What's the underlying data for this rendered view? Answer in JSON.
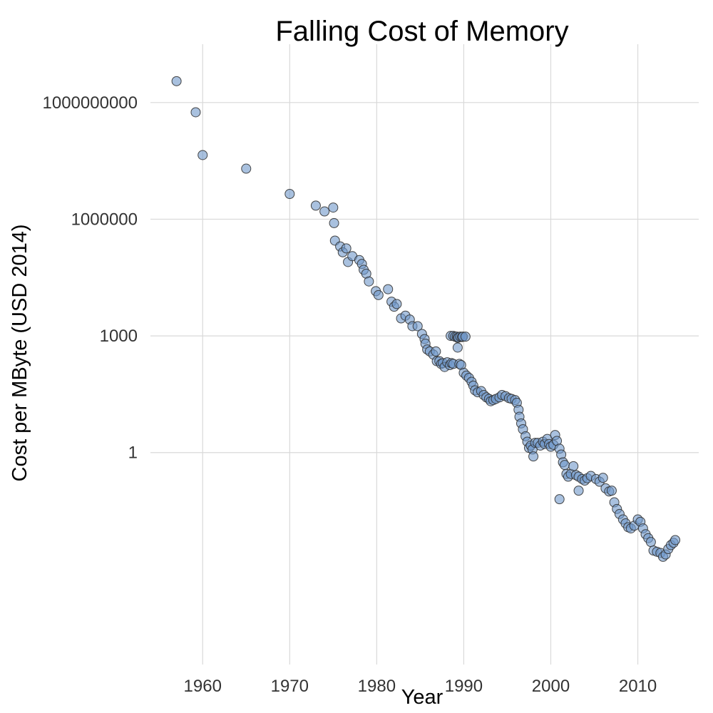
{
  "chart_data": {
    "type": "scatter",
    "title": "Falling Cost of Memory",
    "xlabel": "Year",
    "ylabel": "Cost per MByte (USD 2014)",
    "y_scale": "log10",
    "xlim": [
      1954,
      2017
    ],
    "ylim_log10": [
      -5.45,
      10.5
    ],
    "xticks": [
      1960,
      1970,
      1980,
      1990,
      2000,
      2010
    ],
    "xtick_labels": [
      "1960",
      "1970",
      "1980",
      "1990",
      "2000",
      "2010"
    ],
    "yticks_log10": [
      0,
      3,
      6,
      9
    ],
    "ytick_labels": [
      "1",
      "1000",
      "1000000",
      "1000000000"
    ],
    "grid": true,
    "marker_color": "#6f97c9",
    "points": [
      [
        1957,
        9.55
      ],
      [
        1959.2,
        8.75
      ],
      [
        1960,
        7.65
      ],
      [
        1965,
        7.3
      ],
      [
        1970,
        6.65
      ],
      [
        1973,
        6.35
      ],
      [
        1974,
        6.2
      ],
      [
        1975,
        6.3
      ],
      [
        1975.1,
        5.9
      ],
      [
        1975.2,
        5.45
      ],
      [
        1975.8,
        5.3
      ],
      [
        1976.1,
        5.15
      ],
      [
        1976.5,
        5.25
      ],
      [
        1976.7,
        4.9
      ],
      [
        1977.2,
        5.05
      ],
      [
        1978,
        4.95
      ],
      [
        1978.3,
        4.85
      ],
      [
        1978.5,
        4.7
      ],
      [
        1978.8,
        4.6
      ],
      [
        1979.1,
        4.4
      ],
      [
        1979.9,
        4.15
      ],
      [
        1980.2,
        4.05
      ],
      [
        1981.3,
        4.2
      ],
      [
        1981.7,
        3.88
      ],
      [
        1982,
        3.75
      ],
      [
        1982.3,
        3.82
      ],
      [
        1982.8,
        3.45
      ],
      [
        1983.3,
        3.52
      ],
      [
        1983.8,
        3.42
      ],
      [
        1984.1,
        3.25
      ],
      [
        1984.7,
        3.25
      ],
      [
        1985.2,
        3.05
      ],
      [
        1985.5,
        2.92
      ],
      [
        1985.6,
        2.8
      ],
      [
        1985.8,
        2.65
      ],
      [
        1986.1,
        2.6
      ],
      [
        1986.5,
        2.52
      ],
      [
        1986.8,
        2.6
      ],
      [
        1986.9,
        2.35
      ],
      [
        1987.2,
        2.35
      ],
      [
        1987.4,
        2.28
      ],
      [
        1987.6,
        2.3
      ],
      [
        1987.8,
        2.2
      ],
      [
        1988.1,
        2.32
      ],
      [
        1988.4,
        2.25
      ],
      [
        1988.6,
        2.3
      ],
      [
        1988.8,
        2.28
      ],
      [
        1988.5,
        3.0
      ],
      [
        1988.8,
        3.0
      ],
      [
        1989,
        2.98
      ],
      [
        1989.2,
        2.98
      ],
      [
        1989.3,
        2.95
      ],
      [
        1989.4,
        2.96
      ],
      [
        1989.6,
        2.98
      ],
      [
        1989.8,
        2.97
      ],
      [
        1989.9,
        2.98
      ],
      [
        1990.2,
        2.98
      ],
      [
        1989.3,
        2.7
      ],
      [
        1989.5,
        2.28
      ],
      [
        1989.7,
        2.25
      ],
      [
        1990,
        2.05
      ],
      [
        1990.3,
        1.98
      ],
      [
        1990.6,
        1.92
      ],
      [
        1990.9,
        1.82
      ],
      [
        1991.1,
        1.72
      ],
      [
        1991.3,
        1.6
      ],
      [
        1991.6,
        1.55
      ],
      [
        1992,
        1.58
      ],
      [
        1992.3,
        1.48
      ],
      [
        1992.6,
        1.42
      ],
      [
        1992.9,
        1.38
      ],
      [
        1993.1,
        1.32
      ],
      [
        1993.4,
        1.35
      ],
      [
        1993.7,
        1.38
      ],
      [
        1994.1,
        1.42
      ],
      [
        1994.4,
        1.48
      ],
      [
        1994.8,
        1.45
      ],
      [
        1995.2,
        1.4
      ],
      [
        1995.5,
        1.38
      ],
      [
        1995.9,
        1.35
      ],
      [
        1996.1,
        1.28
      ],
      [
        1996.3,
        1.1
      ],
      [
        1996.4,
        0.92
      ],
      [
        1996.6,
        0.75
      ],
      [
        1996.8,
        0.6
      ],
      [
        1997.1,
        0.42
      ],
      [
        1997.3,
        0.28
      ],
      [
        1997.5,
        0.12
      ],
      [
        1997.7,
        0.18
      ],
      [
        1997.9,
        0.08
      ],
      [
        1998,
        -0.1
      ],
      [
        1998.2,
        0.25
      ],
      [
        1998.5,
        0.25
      ],
      [
        1998.8,
        0.18
      ],
      [
        1999.1,
        0.28
      ],
      [
        1999.3,
        0.22
      ],
      [
        1999.6,
        0.35
      ],
      [
        1999.8,
        0.22
      ],
      [
        2000,
        0.15
      ],
      [
        2000.3,
        0.2
      ],
      [
        2000.5,
        0.45
      ],
      [
        2000.7,
        0.3
      ],
      [
        2001,
        0.1
      ],
      [
        2001.2,
        -0.05
      ],
      [
        2001.4,
        -0.25
      ],
      [
        2001.6,
        -0.32
      ],
      [
        2001.8,
        -0.55
      ],
      [
        2002,
        -0.62
      ],
      [
        2002.3,
        -0.55
      ],
      [
        2002.6,
        -0.35
      ],
      [
        2002.9,
        -0.58
      ],
      [
        2003.2,
        -0.62
      ],
      [
        2003.6,
        -0.68
      ],
      [
        2003.9,
        -0.72
      ],
      [
        2004.2,
        -0.66
      ],
      [
        2004.6,
        -0.6
      ],
      [
        2005.2,
        -0.68
      ],
      [
        2005.6,
        -0.75
      ],
      [
        2006,
        -0.65
      ],
      [
        2006.3,
        -0.92
      ],
      [
        2006.7,
        -1.0
      ],
      [
        2007,
        -0.98
      ],
      [
        2007.3,
        -1.28
      ],
      [
        2007.6,
        -1.45
      ],
      [
        2007.9,
        -1.58
      ],
      [
        2008.3,
        -1.72
      ],
      [
        2008.6,
        -1.82
      ],
      [
        2008.9,
        -1.92
      ],
      [
        2009.2,
        -1.95
      ],
      [
        2009.6,
        -1.88
      ],
      [
        2010,
        -1.72
      ],
      [
        2010.3,
        -1.78
      ],
      [
        2010.6,
        -1.95
      ],
      [
        2010.9,
        -2.1
      ],
      [
        2011.2,
        -2.2
      ],
      [
        2011.5,
        -2.3
      ],
      [
        2011.8,
        -2.52
      ],
      [
        2012.2,
        -2.55
      ],
      [
        2012.6,
        -2.58
      ],
      [
        2012.9,
        -2.68
      ],
      [
        2013.2,
        -2.62
      ],
      [
        2013.5,
        -2.48
      ],
      [
        2013.8,
        -2.38
      ],
      [
        2014.1,
        -2.32
      ],
      [
        2014.3,
        -2.25
      ],
      [
        2001,
        -1.2
      ],
      [
        2003.2,
        -0.98
      ]
    ]
  }
}
